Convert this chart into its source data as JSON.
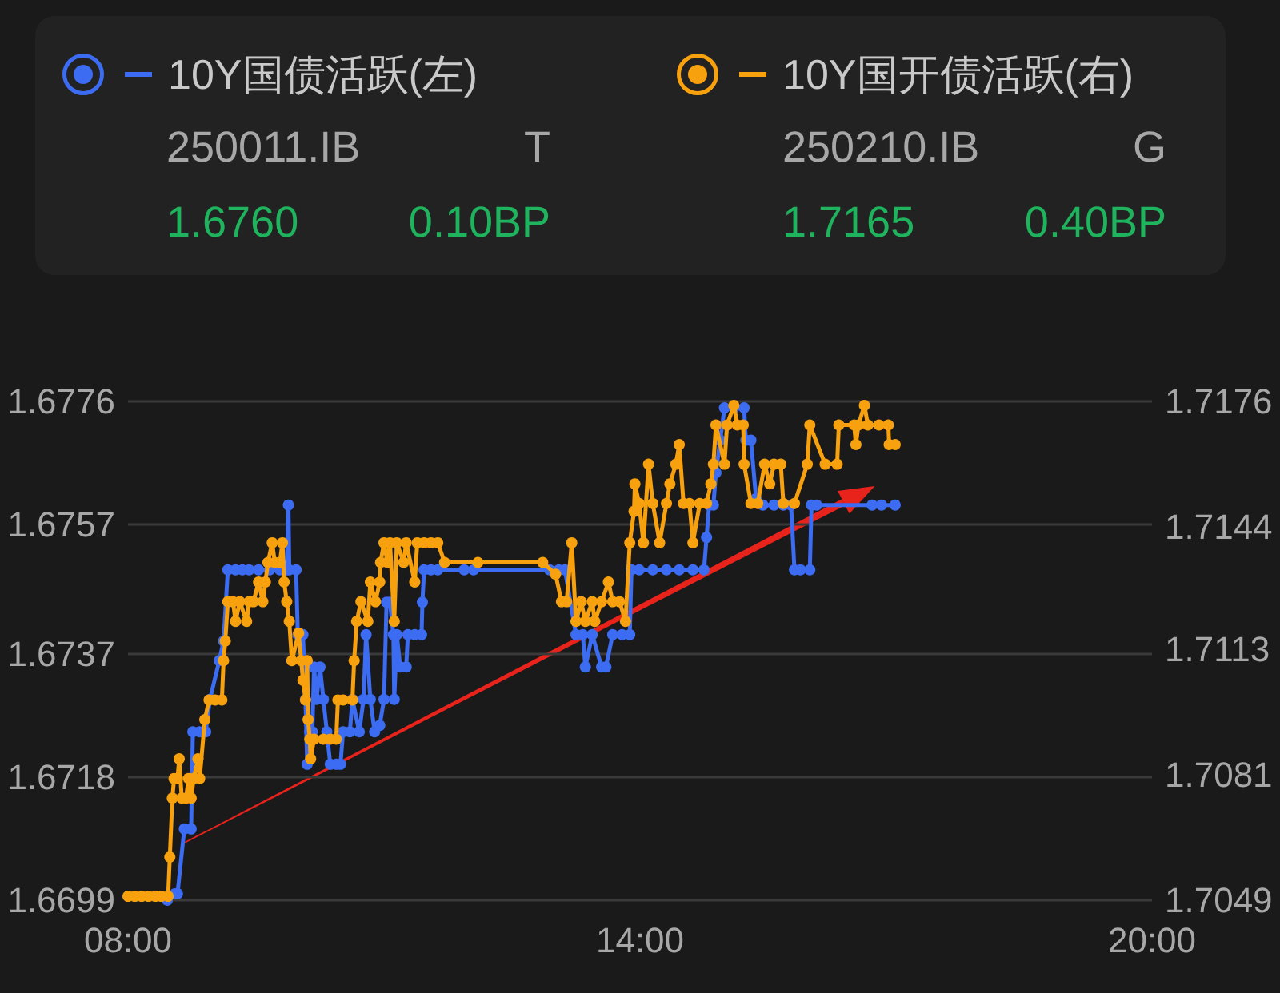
{
  "chart_data": {
    "type": "line",
    "legend": "top",
    "grid": "y",
    "marker": "circle",
    "line_style": "solid",
    "annotations": [
      "250011.IB",
      "T",
      "1.6760",
      "0.10BP",
      "250210.IB",
      "G",
      "1.7165",
      "0.40BP"
    ],
    "xlim": [
      8,
      20
    ],
    "xticks": [
      {
        "value": 8,
        "label": "08:00"
      },
      {
        "value": 14,
        "label": "14:00"
      },
      {
        "value": 20,
        "label": "20:00"
      }
    ],
    "ylim": [
      1.6699,
      1.6776
    ],
    "yticks": [
      1.6699,
      1.6718,
      1.6737,
      1.6757,
      1.6776
    ],
    "y2lim": [
      1.7049,
      1.7176
    ],
    "y2ticks": [
      1.7049,
      1.7081,
      1.7113,
      1.7144,
      1.7176
    ],
    "series": [
      {
        "name": "10Y国债活跃(左)",
        "color": "#3b6cf2",
        "x": [
          8.46,
          8.55,
          8.58,
          8.66,
          8.74,
          8.76,
          8.84,
          8.91,
          8.96,
          9.07,
          9.12,
          9.17,
          9.26,
          9.34,
          9.42,
          9.53,
          9.66,
          9.78,
          9.86,
          9.88,
          9.89,
          9.97,
          9.99,
          10.05,
          10.08,
          10.1,
          10.13,
          10.16,
          10.18,
          10.21,
          10.25,
          10.29,
          10.33,
          10.37,
          10.44,
          10.49,
          10.52,
          10.6,
          10.63,
          10.71,
          10.76,
          10.79,
          10.84,
          10.89,
          10.95,
          11.0,
          11.03,
          11.07,
          11.11,
          11.12,
          11.15,
          11.19,
          11.26,
          11.28,
          11.36,
          11.44,
          11.45,
          11.47,
          11.55,
          11.63,
          11.94,
          12.05,
          12.94,
          13.05,
          13.12,
          13.25,
          13.33,
          13.36,
          13.44,
          13.55,
          13.6,
          13.68,
          13.79,
          13.88,
          13.9,
          13.99,
          14.15,
          14.31,
          14.46,
          14.62,
          14.75,
          14.78,
          14.81,
          14.86,
          14.89,
          14.94,
          14.99,
          15.1,
          15.22,
          15.24,
          15.3,
          15.36,
          15.44,
          15.57,
          15.68,
          15.77,
          15.81,
          15.88,
          15.99,
          16.01,
          16.07,
          16.72,
          16.83,
          16.99
        ],
        "values": [
          1.6699,
          1.67,
          1.67,
          1.671,
          1.671,
          1.6725,
          1.6725,
          1.6725,
          1.673,
          1.6736,
          1.6739,
          1.675,
          1.675,
          1.675,
          1.675,
          1.675,
          1.675,
          1.675,
          1.675,
          1.676,
          1.675,
          1.675,
          1.674,
          1.674,
          1.673,
          1.672,
          1.6725,
          1.6725,
          1.6735,
          1.673,
          1.6735,
          1.673,
          1.6725,
          1.672,
          1.672,
          1.672,
          1.6725,
          1.6725,
          1.673,
          1.6725,
          1.673,
          1.674,
          1.673,
          1.6725,
          1.6726,
          1.673,
          1.6745,
          1.6745,
          1.674,
          1.673,
          1.674,
          1.6735,
          1.6735,
          1.674,
          1.674,
          1.674,
          1.6745,
          1.675,
          1.675,
          1.675,
          1.675,
          1.675,
          1.675,
          1.675,
          1.675,
          1.674,
          1.674,
          1.6735,
          1.674,
          1.6735,
          1.6735,
          1.674,
          1.674,
          1.674,
          1.675,
          1.675,
          1.675,
          1.675,
          1.675,
          1.675,
          1.675,
          1.6755,
          1.676,
          1.676,
          1.6765,
          1.677,
          1.6775,
          1.6775,
          1.6775,
          1.677,
          1.677,
          1.6761,
          1.676,
          1.676,
          1.676,
          1.676,
          1.675,
          1.675,
          1.675,
          1.676,
          1.676,
          1.676,
          1.676,
          1.676
        ]
      },
      {
        "name": "10Y国开债活跃(右)",
        "color": "#f8a10e",
        "axis": "y2",
        "x": [
          8.0,
          8.08,
          8.16,
          8.24,
          8.32,
          8.39,
          8.47,
          8.49,
          8.52,
          8.54,
          8.58,
          8.6,
          8.63,
          8.68,
          8.71,
          8.74,
          8.77,
          8.82,
          8.84,
          8.9,
          8.95,
          9.02,
          9.1,
          9.12,
          9.14,
          9.17,
          9.23,
          9.26,
          9.31,
          9.39,
          9.42,
          9.47,
          9.53,
          9.58,
          9.61,
          9.64,
          9.69,
          9.72,
          9.78,
          9.81,
          9.83,
          9.86,
          9.89,
          9.92,
          10.0,
          10.03,
          10.05,
          10.08,
          10.1,
          10.11,
          10.13,
          10.14,
          10.18,
          10.29,
          10.37,
          10.44,
          10.46,
          10.52,
          10.63,
          10.65,
          10.68,
          10.73,
          10.81,
          10.84,
          10.9,
          10.95,
          10.96,
          11.0,
          11.04,
          11.07,
          11.12,
          11.15,
          11.23,
          11.26,
          11.36,
          11.39,
          11.47,
          11.55,
          11.63,
          11.71,
          12.1,
          12.86,
          13.01,
          13.08,
          13.14,
          13.2,
          13.25,
          13.31,
          13.36,
          13.44,
          13.47,
          13.55,
          13.63,
          13.68,
          13.76,
          13.83,
          13.88,
          13.93,
          13.94,
          13.99,
          14.04,
          14.1,
          14.15,
          14.23,
          14.31,
          14.35,
          14.42,
          14.46,
          14.51,
          14.58,
          14.62,
          14.7,
          14.78,
          14.83,
          14.86,
          14.89,
          14.99,
          15.02,
          15.1,
          15.14,
          15.21,
          15.22,
          15.3,
          15.38,
          15.46,
          15.52,
          15.57,
          15.65,
          15.68,
          15.81,
          15.96,
          15.99,
          16.17,
          16.31,
          16.33,
          16.51,
          16.53,
          16.56,
          16.63,
          16.67,
          16.8,
          16.91,
          16.92,
          16.99
        ],
        "values": [
          1.705,
          1.705,
          1.705,
          1.705,
          1.705,
          1.705,
          1.705,
          1.706,
          1.7075,
          1.708,
          1.708,
          1.7085,
          1.7075,
          1.7075,
          1.708,
          1.7075,
          1.708,
          1.7085,
          1.708,
          1.7095,
          1.71,
          1.71,
          1.71,
          1.711,
          1.7115,
          1.7125,
          1.7125,
          1.712,
          1.7125,
          1.712,
          1.7125,
          1.7125,
          1.713,
          1.7125,
          1.713,
          1.7135,
          1.714,
          1.7135,
          1.7135,
          1.714,
          1.713,
          1.7125,
          1.712,
          1.711,
          1.7117,
          1.711,
          1.7105,
          1.71,
          1.711,
          1.7095,
          1.709,
          1.7085,
          1.709,
          1.709,
          1.709,
          1.709,
          1.71,
          1.71,
          1.71,
          1.711,
          1.712,
          1.7125,
          1.712,
          1.713,
          1.7125,
          1.713,
          1.7135,
          1.714,
          1.7135,
          1.714,
          1.712,
          1.714,
          1.7135,
          1.714,
          1.713,
          1.714,
          1.714,
          1.714,
          1.714,
          1.7135,
          1.7135,
          1.7135,
          1.7132,
          1.7125,
          1.7125,
          1.714,
          1.712,
          1.7125,
          1.712,
          1.7125,
          1.712,
          1.7125,
          1.713,
          1.7125,
          1.7125,
          1.712,
          1.714,
          1.7148,
          1.7155,
          1.715,
          1.714,
          1.716,
          1.715,
          1.714,
          1.715,
          1.7155,
          1.716,
          1.7165,
          1.715,
          1.715,
          1.714,
          1.715,
          1.715,
          1.7155,
          1.716,
          1.717,
          1.716,
          1.717,
          1.7175,
          1.717,
          1.717,
          1.716,
          1.715,
          1.715,
          1.716,
          1.7155,
          1.716,
          1.716,
          1.715,
          1.715,
          1.716,
          1.717,
          1.716,
          1.716,
          1.717,
          1.717,
          1.7165,
          1.717,
          1.7175,
          1.717,
          1.717,
          1.717,
          1.7165,
          1.7165
        ]
      }
    ]
  }
}
